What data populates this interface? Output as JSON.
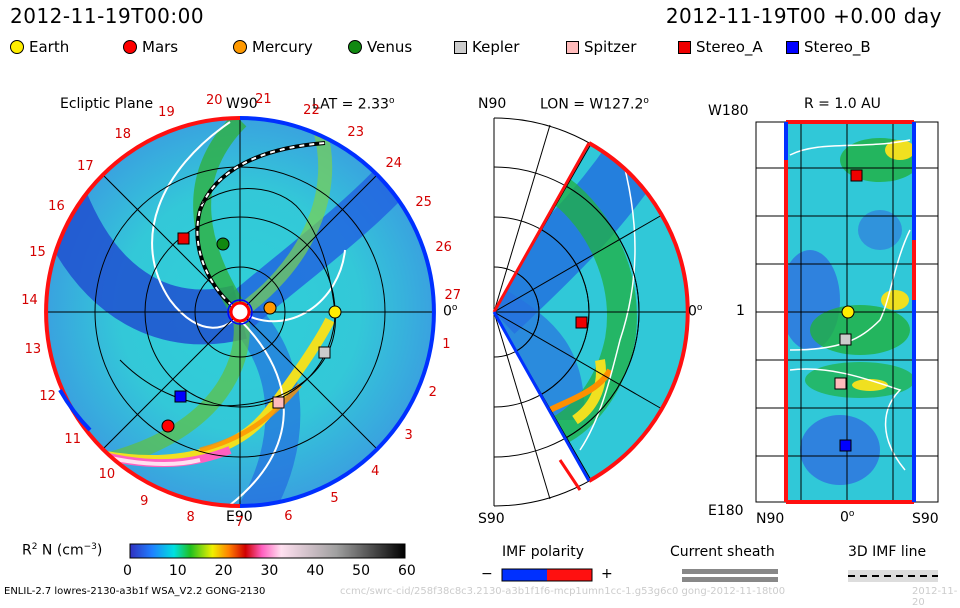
{
  "header": {
    "datetime": "2012-11-19T00:00",
    "offset": "2012-11-19T00 +0.00 day"
  },
  "legend": [
    {
      "label": "Earth",
      "shape": "dot",
      "color": "#ffee00"
    },
    {
      "label": "Mars",
      "shape": "dot",
      "color": "#ff0000"
    },
    {
      "label": "Mercury",
      "shape": "dot",
      "color": "#ff9900"
    },
    {
      "label": "Venus",
      "shape": "dot",
      "color": "#118811"
    },
    {
      "label": "Kepler",
      "shape": "sq",
      "color": "#cccccc"
    },
    {
      "label": "Spitzer",
      "shape": "sq",
      "color": "#ffbbbb"
    },
    {
      "label": "Stereo_A",
      "shape": "sq",
      "color": "#ee0000"
    },
    {
      "label": "Stereo_B",
      "shape": "sq",
      "color": "#0000ff"
    }
  ],
  "ecliptic": {
    "title": "Ecliptic Plane",
    "top_label": "W90",
    "bottom_label": "E90",
    "right_label": "0",
    "lat_label": "LAT = 2.33",
    "degree_sup": "o",
    "carrington": [
      "1",
      "2",
      "3",
      "4",
      "5",
      "6",
      "7",
      "8",
      "9",
      "10",
      "11",
      "12",
      "13",
      "14",
      "15",
      "16",
      "17",
      "18",
      "19",
      "20",
      "21",
      "22",
      "23",
      "24",
      "25",
      "26",
      "27"
    ]
  },
  "meridional": {
    "top_label": "N90",
    "bottom_label": "S90",
    "lon_label": "LON = W127.2",
    "right_label": "0",
    "degree_sup": "o"
  },
  "surface": {
    "r_label": "R = 1.0 AU",
    "top_label": "W180",
    "bottom_label": "E180",
    "mid_label": "1",
    "x_left": "N90",
    "x_mid": "0",
    "x_right": "S90",
    "degree_sup": "o"
  },
  "colorbar": {
    "label": "R",
    "label_sup": "2",
    "label_rest": " N (cm",
    "label_exp": "−3",
    "label_close": ")",
    "ticks": [
      "0",
      "10",
      "20",
      "30",
      "40",
      "50",
      "60"
    ]
  },
  "imf": {
    "title": "IMF polarity",
    "minus": "−",
    "plus": "+"
  },
  "sheath": {
    "title": "Current sheath"
  },
  "imf3d": {
    "title": "3D IMF line"
  },
  "footer": {
    "left": "ENLIL-2.7 lowres-2130-a3b1f WSA_V2.2 GONG-2130",
    "mid": "ccmc/swrc-cid/258f38c8c3.2130-a3b1f1f6-mcp1umn1cc-1.g53g6c0 gong-2012-11-18t00",
    "right": "2012-11-20"
  }
}
